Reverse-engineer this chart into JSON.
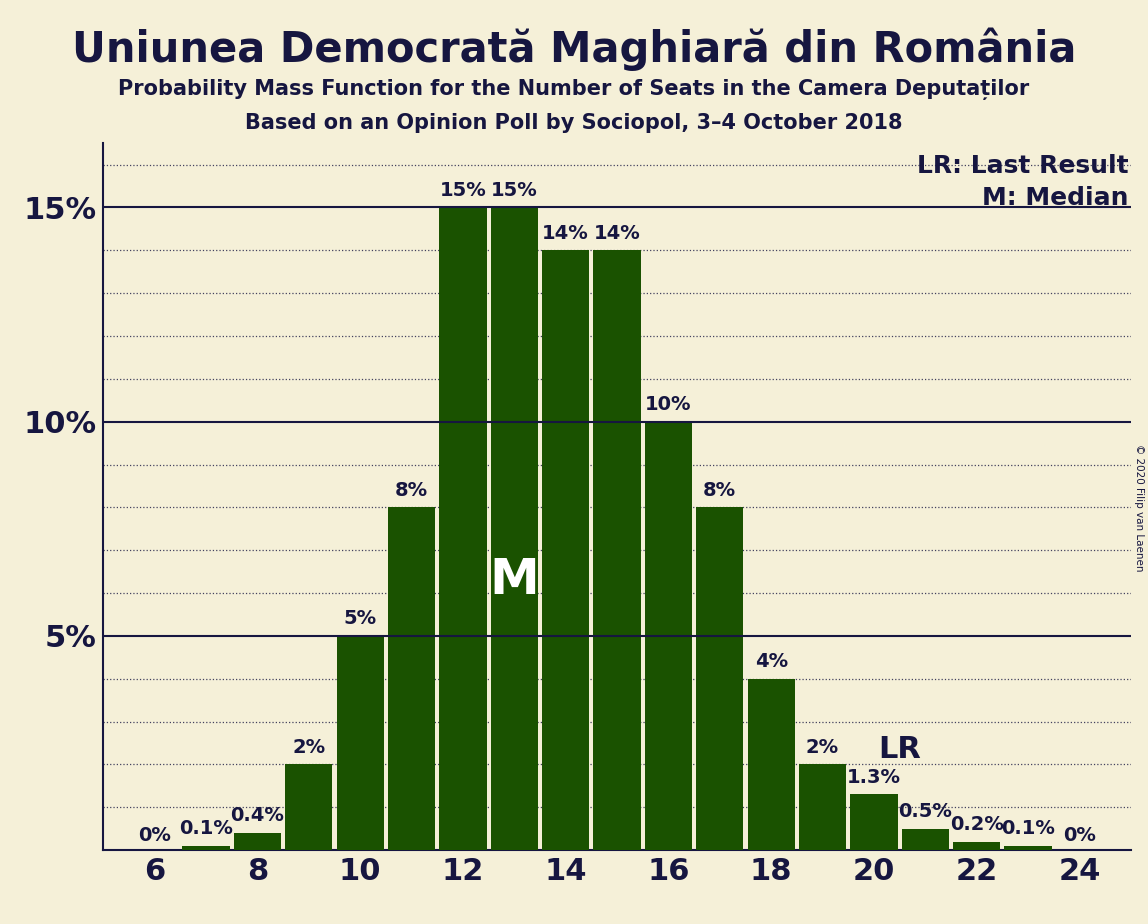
{
  "title": "Uniunea Democrată Maghiară din România",
  "subtitle1": "Probability Mass Function for the Number of Seats in the Camera Deputaților",
  "subtitle2": "Based on an Opinion Poll by Sociopol, 3–4 October 2018",
  "copyright": "© 2020 Filip van Laenen",
  "seats": [
    6,
    7,
    8,
    9,
    10,
    11,
    12,
    13,
    14,
    15,
    16,
    17,
    18,
    19,
    20,
    21,
    22,
    23,
    24
  ],
  "probabilities": [
    0.0,
    0.1,
    0.4,
    2.0,
    5.0,
    8.0,
    15.0,
    15.0,
    14.0,
    14.0,
    10.0,
    8.0,
    4.0,
    2.0,
    1.3,
    0.5,
    0.2,
    0.1,
    0.0
  ],
  "labels": [
    "0%",
    "0.1%",
    "0.4%",
    "2%",
    "5%",
    "8%",
    "15%",
    "15%",
    "14%",
    "14%",
    "10%",
    "8%",
    "4%",
    "2%",
    "1.3%",
    "0.5%",
    "0.2%",
    "0.1%",
    "0%"
  ],
  "bar_color": "#1a5200",
  "background_color": "#f5f0d8",
  "text_color": "#161640",
  "median_seat": 13,
  "last_result_seat": 21,
  "ylim_max": 16.5,
  "ytick_positions": [
    5,
    10,
    15
  ],
  "ytick_labels": [
    "5%",
    "10%",
    "15%"
  ],
  "xticks": [
    6,
    8,
    10,
    12,
    14,
    16,
    18,
    20,
    22,
    24
  ],
  "title_fontsize": 30,
  "subtitle_fontsize": 15,
  "axis_tick_fontsize": 22,
  "bar_label_fontsize": 14,
  "legend_fontsize": 18,
  "median_fontsize": 36,
  "lr_fontsize": 22,
  "bar_width": 0.92
}
